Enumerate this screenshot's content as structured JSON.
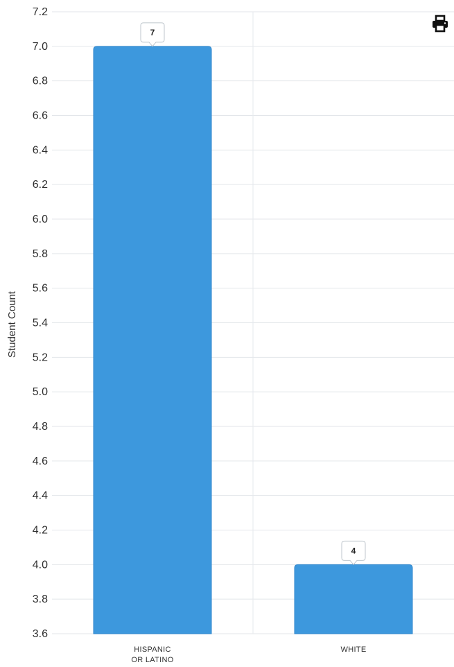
{
  "toolbar": {
    "print_icon": "printer-icon"
  },
  "colors": {
    "bar": "#3d98dd",
    "bar_edge": "#2f86cc",
    "grid": "#e3e6ea",
    "divider": "#e6e9ee"
  },
  "chart_data": {
    "type": "bar",
    "title": "",
    "xlabel": "",
    "ylabel": "Student Count",
    "categories": [
      [
        "HISPANIC",
        "OR LATINO"
      ],
      [
        "WHITE"
      ]
    ],
    "values": [
      7,
      4
    ],
    "data_labels": [
      "7",
      "4"
    ],
    "ylim": [
      3.6,
      7.2
    ],
    "yticks": [
      "3.6",
      "3.8",
      "4.0",
      "4.2",
      "4.4",
      "4.6",
      "4.8",
      "5.0",
      "5.2",
      "5.4",
      "5.6",
      "5.8",
      "6.0",
      "6.2",
      "6.4",
      "6.6",
      "6.8",
      "7.0",
      "7.2"
    ],
    "grid": true,
    "legend": "none"
  }
}
